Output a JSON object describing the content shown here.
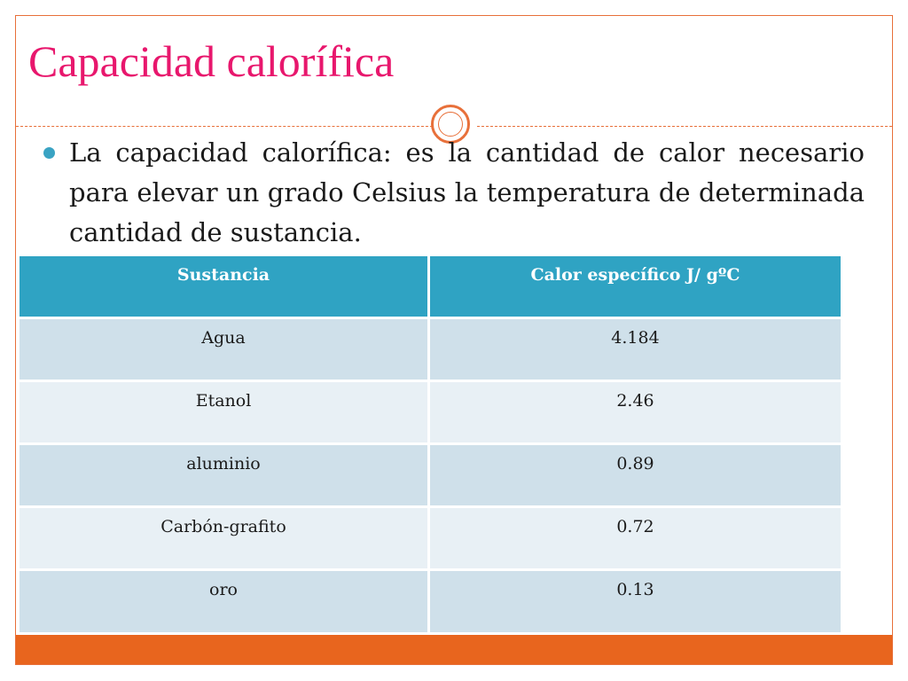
{
  "slide": {
    "title": "Capacidad calorífica",
    "bullet_text": "La capacidad calorífica: es la cantidad de calor necesario para elevar un grado  Celsius la temperatura de determinada cantidad de sustancia."
  },
  "table": {
    "headers": [
      "Sustancia",
      "Calor específico J/ gºC"
    ],
    "rows": [
      [
        "Agua",
        "4.184"
      ],
      [
        "Etanol",
        "2.46"
      ],
      [
        "aluminio",
        "0.89"
      ],
      [
        "Carbón-grafito",
        "0.72"
      ],
      [
        "oro",
        "0.13"
      ]
    ]
  },
  "colors": {
    "title": "#e8176d",
    "accent_orange": "#e8651e",
    "table_header": "#2fa3c3",
    "row_dark": "#cfe0ea",
    "row_light": "#e8f0f5"
  },
  "icons": {
    "bullet": "bullet-dot-icon",
    "divider_ornament": "ring-ornament-icon"
  }
}
